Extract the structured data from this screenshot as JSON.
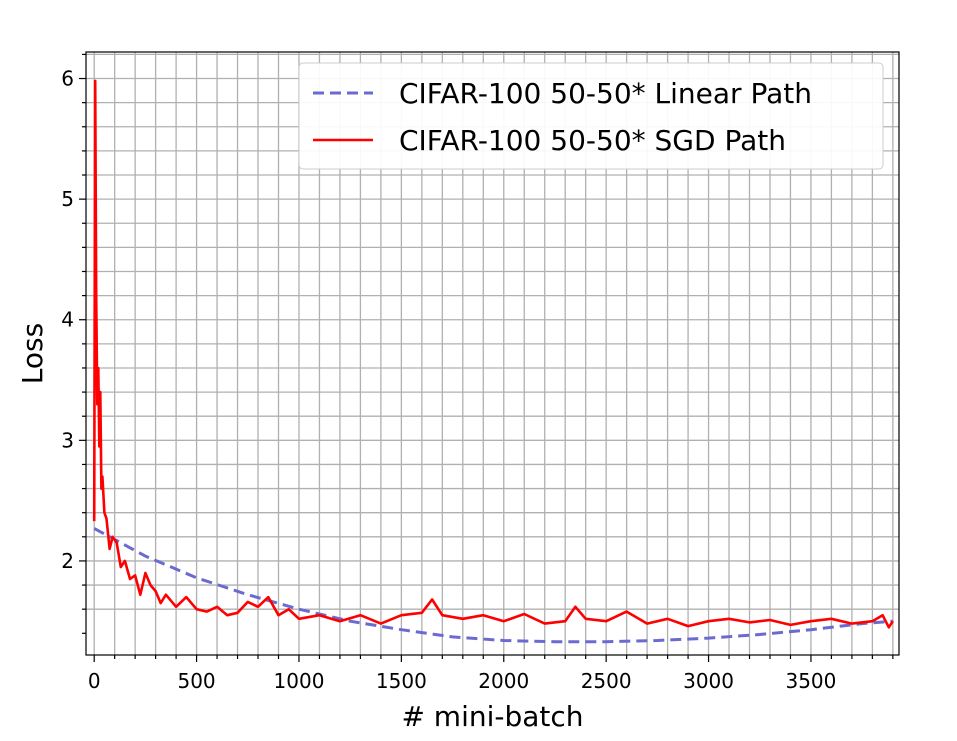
{
  "chart_data": {
    "type": "line",
    "title": "",
    "xlabel": "# mini-batch",
    "ylabel": "Loss",
    "xlim": [
      -40,
      3930
    ],
    "ylim": [
      1.22,
      6.22
    ],
    "xticks": [
      0,
      500,
      1000,
      1500,
      2000,
      2500,
      3000,
      3500
    ],
    "yticks": [
      2,
      3,
      4,
      5,
      6
    ],
    "xtick_labels": [
      "0",
      "500",
      "1000",
      "1500",
      "2000",
      "2500",
      "3000",
      "3500"
    ],
    "ytick_labels": [
      "2",
      "3",
      "4",
      "5",
      "6"
    ],
    "grid": true,
    "minor_grid": true,
    "legend_position": "top-right",
    "series": [
      {
        "name": "CIFAR-100 50-50* Linear Path",
        "style": "dashed",
        "color": "#6a6ad0",
        "x": [
          0,
          250,
          500,
          750,
          1000,
          1250,
          1500,
          1750,
          2000,
          2250,
          2500,
          2750,
          3000,
          3250,
          3500,
          3750,
          3900
        ],
        "y": [
          2.27,
          2.04,
          1.86,
          1.72,
          1.6,
          1.5,
          1.43,
          1.37,
          1.34,
          1.33,
          1.33,
          1.34,
          1.36,
          1.39,
          1.43,
          1.48,
          1.5
        ]
      },
      {
        "name": "CIFAR-100 50-50* SGD Path",
        "style": "solid",
        "color": "#ff0000",
        "x": [
          0,
          5,
          10,
          15,
          20,
          25,
          30,
          35,
          40,
          50,
          60,
          75,
          90,
          110,
          130,
          150,
          175,
          200,
          225,
          250,
          275,
          300,
          325,
          350,
          400,
          450,
          500,
          550,
          600,
          650,
          700,
          750,
          800,
          850,
          900,
          950,
          1000,
          1100,
          1200,
          1300,
          1400,
          1500,
          1600,
          1650,
          1700,
          1800,
          1900,
          2000,
          2100,
          2200,
          2300,
          2350,
          2400,
          2500,
          2600,
          2700,
          2800,
          2900,
          3000,
          3100,
          3200,
          3300,
          3400,
          3500,
          3600,
          3700,
          3800,
          3850,
          3880,
          3900
        ],
        "y": [
          2.33,
          5.98,
          4.2,
          3.3,
          3.6,
          2.95,
          3.4,
          2.6,
          2.7,
          2.4,
          2.35,
          2.1,
          2.2,
          2.15,
          1.95,
          2.0,
          1.85,
          1.88,
          1.72,
          1.9,
          1.8,
          1.75,
          1.65,
          1.72,
          1.62,
          1.7,
          1.6,
          1.58,
          1.62,
          1.55,
          1.57,
          1.66,
          1.62,
          1.7,
          1.55,
          1.6,
          1.52,
          1.55,
          1.5,
          1.55,
          1.48,
          1.55,
          1.57,
          1.68,
          1.55,
          1.52,
          1.55,
          1.5,
          1.56,
          1.48,
          1.5,
          1.62,
          1.52,
          1.5,
          1.58,
          1.48,
          1.52,
          1.46,
          1.5,
          1.52,
          1.49,
          1.51,
          1.47,
          1.5,
          1.52,
          1.48,
          1.5,
          1.55,
          1.45,
          1.5
        ]
      }
    ]
  }
}
